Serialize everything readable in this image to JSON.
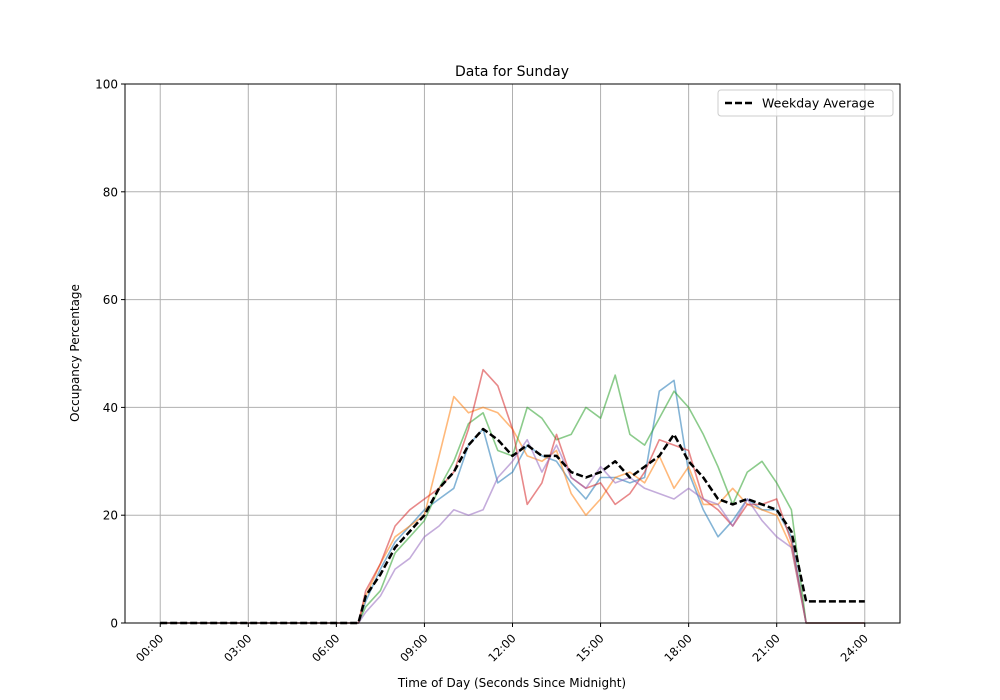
{
  "chart_data": {
    "type": "line",
    "title": "Data for Sunday",
    "xlabel": "Time of Day (Seconds Since Midnight)",
    "ylabel": "Occupancy Percentage",
    "ylim": [
      0,
      100
    ],
    "xlim_hours": [
      -1.2,
      25.2
    ],
    "grid": true,
    "legend_placement": "top-right",
    "x_ticks": [
      "00:00",
      "03:00",
      "06:00",
      "09:00",
      "12:00",
      "15:00",
      "18:00",
      "21:00",
      "24:00"
    ],
    "y_ticks": [
      "0",
      "20",
      "40",
      "60",
      "80",
      "100"
    ],
    "x": [
      "00:00",
      "06:45",
      "07:00",
      "07:30",
      "08:00",
      "08:30",
      "09:00",
      "09:30",
      "10:00",
      "10:30",
      "11:00",
      "11:30",
      "12:00",
      "12:30",
      "13:00",
      "13:30",
      "14:00",
      "14:30",
      "15:00",
      "15:30",
      "16:00",
      "16:30",
      "17:00",
      "17:30",
      "18:00",
      "18:30",
      "19:00",
      "19:30",
      "20:00",
      "20:30",
      "21:00",
      "21:30",
      "22:00",
      "24:00"
    ],
    "series": [
      {
        "color": "#1f77b4",
        "dashed": false,
        "values": [
          0,
          0,
          4,
          10,
          15,
          18,
          21,
          23,
          25,
          33,
          36,
          26,
          28,
          33,
          31,
          30,
          26,
          23,
          27,
          27,
          26,
          27,
          43,
          45,
          28,
          21,
          16,
          19,
          23,
          21,
          21,
          16,
          0,
          0
        ]
      },
      {
        "color": "#ff7f0e",
        "dashed": false,
        "values": [
          0,
          0,
          5,
          11,
          16,
          18,
          20,
          31,
          42,
          39,
          40,
          39,
          36,
          31,
          30,
          32,
          24,
          20,
          23,
          27,
          28,
          26,
          31,
          25,
          29,
          22,
          22,
          25,
          22,
          21,
          20,
          14,
          0,
          0
        ]
      },
      {
        "color": "#2ca02c",
        "dashed": false,
        "values": [
          0,
          0,
          3,
          6,
          13,
          16,
          19,
          25,
          30,
          37,
          39,
          32,
          31,
          40,
          38,
          34,
          35,
          40,
          38,
          46,
          35,
          33,
          38,
          43,
          40,
          35,
          29,
          22,
          28,
          30,
          26,
          21,
          0,
          0
        ]
      },
      {
        "color": "#d62728",
        "dashed": false,
        "values": [
          0,
          0,
          6,
          11,
          18,
          21,
          23,
          25,
          28,
          36,
          47,
          44,
          36,
          22,
          26,
          35,
          27,
          25,
          26,
          22,
          24,
          28,
          34,
          33,
          32,
          23,
          21,
          18,
          22,
          22,
          23,
          15,
          0,
          0
        ]
      },
      {
        "color": "#9467bd",
        "dashed": false,
        "values": [
          0,
          0,
          2,
          5,
          10,
          12,
          16,
          18,
          21,
          20,
          21,
          27,
          30,
          34,
          28,
          33,
          27,
          25,
          29,
          26,
          27,
          25,
          24,
          23,
          25,
          23,
          22,
          18,
          23,
          19,
          16,
          14,
          0,
          0
        ]
      },
      {
        "name": "Weekday Average",
        "color": "#000000",
        "dashed": true,
        "values": [
          0,
          0,
          5,
          9,
          14,
          17,
          20,
          25,
          28,
          33,
          36,
          34,
          31,
          33,
          31,
          31,
          28,
          27,
          28,
          30,
          27,
          29,
          31,
          35,
          30,
          27,
          23,
          22,
          23,
          22,
          21,
          17,
          4,
          4
        ]
      }
    ]
  }
}
